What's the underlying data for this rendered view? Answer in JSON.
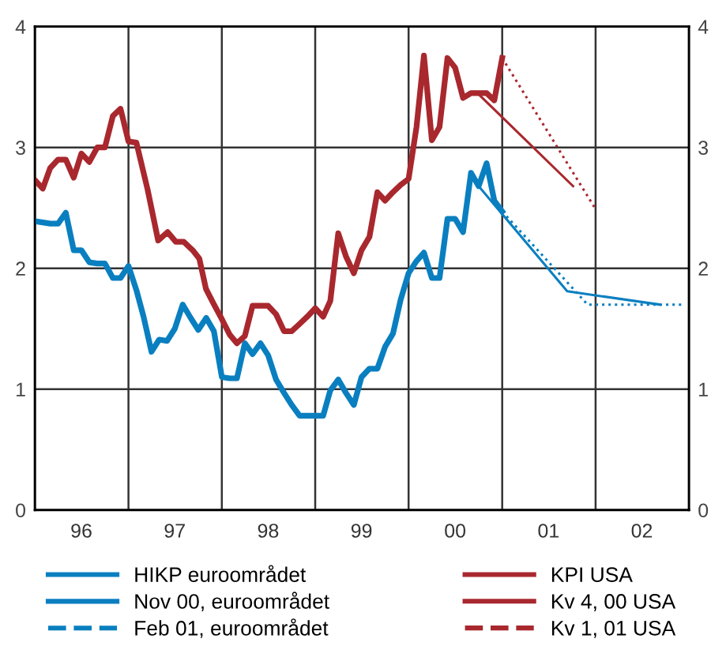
{
  "chart_data": {
    "type": "line",
    "xlim": [
      "1996-01-01",
      "2003-01-01"
    ],
    "xticks": [
      {
        "value": "1996-01-01",
        "label": null
      },
      {
        "value": "1996-07-01",
        "label": "96"
      },
      {
        "value": "1997-01-01",
        "label": null
      },
      {
        "value": "1997-07-01",
        "label": "97"
      },
      {
        "value": "1998-01-01",
        "label": null
      },
      {
        "value": "1998-07-01",
        "label": "98"
      },
      {
        "value": "1999-01-01",
        "label": null
      },
      {
        "value": "1999-07-01",
        "label": "99"
      },
      {
        "value": "2000-01-01",
        "label": null
      },
      {
        "value": "2000-07-01",
        "label": "00"
      },
      {
        "value": "2001-01-01",
        "label": null
      },
      {
        "value": "2001-07-01",
        "label": "01"
      },
      {
        "value": "2002-01-01",
        "label": null
      },
      {
        "value": "2002-07-01",
        "label": "02"
      },
      {
        "value": "2003-01-01",
        "label": null
      }
    ],
    "ylim": [
      0,
      4
    ],
    "yticks": [
      0,
      1,
      2,
      3,
      4
    ],
    "y2lim": [
      0,
      4
    ],
    "y2ticks": [
      0,
      1,
      2,
      3,
      4
    ],
    "grid": true,
    "legend": "bottom",
    "marker": "none",
    "series": [
      {
        "name": "HIKP euroområdet",
        "color": "#0a7fc0",
        "line_style": "solid",
        "x": [
          "1996-01",
          "1996-02",
          "1996-03",
          "1996-04",
          "1996-05",
          "1996-06",
          "1996-07",
          "1996-08",
          "1996-09",
          "1996-10",
          "1996-11",
          "1996-12",
          "1997-01",
          "1997-02",
          "1997-03",
          "1997-04",
          "1997-05",
          "1997-06",
          "1997-07",
          "1997-08",
          "1997-09",
          "1997-10",
          "1997-11",
          "1997-12",
          "1998-01",
          "1998-02",
          "1998-03",
          "1998-04",
          "1998-05",
          "1998-06",
          "1998-07",
          "1998-08",
          "1998-09",
          "1998-10",
          "1998-11",
          "1998-12",
          "1999-01",
          "1999-02",
          "1999-03",
          "1999-04",
          "1999-05",
          "1999-06",
          "1999-07",
          "1999-08",
          "1999-09",
          "1999-10",
          "1999-11",
          "1999-12",
          "2000-01",
          "2000-02",
          "2000-03",
          "2000-04",
          "2000-05",
          "2000-06",
          "2000-07",
          "2000-08",
          "2000-09",
          "2000-10",
          "2000-11",
          "2000-12",
          "2001-01"
        ],
        "values": [
          2.39,
          2.38,
          2.37,
          2.37,
          2.46,
          2.15,
          2.15,
          2.05,
          2.04,
          2.04,
          1.92,
          1.92,
          2.02,
          1.82,
          1.6,
          1.31,
          1.41,
          1.4,
          1.5,
          1.7,
          1.59,
          1.49,
          1.59,
          1.48,
          1.1,
          1.09,
          1.09,
          1.38,
          1.29,
          1.38,
          1.28,
          1.08,
          0.97,
          0.87,
          0.78,
          0.78,
          0.78,
          0.78,
          0.99,
          1.08,
          0.97,
          0.87,
          1.1,
          1.17,
          1.17,
          1.35,
          1.46,
          1.74,
          1.96,
          2.06,
          2.13,
          1.92,
          1.92,
          2.41,
          2.41,
          2.3,
          2.79,
          2.68,
          2.87,
          2.56,
          2.47
        ]
      },
      {
        "name": "Nov 00, euroområdet",
        "color": "#0a7fc0",
        "line_style": "solid",
        "x": [
          "2000-10",
          "2001-09-12",
          "2002-09-09"
        ],
        "values": [
          2.68,
          1.81,
          1.7
        ]
      },
      {
        "name": "Feb 01, euroområdet",
        "color": "#0a7fc0",
        "line_style": "dotted",
        "x": [
          "2001-01",
          "2001-12-01",
          "2002-12-10"
        ],
        "values": [
          2.47,
          1.7,
          1.7
        ]
      },
      {
        "name": "KPI USA",
        "color": "#a8282e",
        "line_style": "solid",
        "x": [
          "1996-01",
          "1996-02",
          "1996-03",
          "1996-04",
          "1996-05",
          "1996-06",
          "1996-07",
          "1996-08",
          "1996-09",
          "1996-10",
          "1996-11",
          "1996-12",
          "1997-01",
          "1997-02",
          "1997-03-17",
          "1997-04-27",
          "1997-06-03",
          "1997-07-05",
          "1997-08-05",
          "1997-09-09",
          "1997-10-05",
          "1997-10-31",
          "1997-11-29",
          "1998-01",
          "1998-02",
          "1998-03",
          "1998-04",
          "1998-05",
          "1998-06",
          "1998-07",
          "1998-08",
          "1998-09",
          "1998-10",
          "1998-11",
          "1998-12",
          "1999-01",
          "1999-02",
          "1999-03",
          "1999-04",
          "1999-05",
          "1999-06",
          "1999-07",
          "1999-08",
          "1999-09",
          "1999-10",
          "1999-11",
          "1999-12",
          "2000-01",
          "2000-02",
          "2000-03",
          "2000-04",
          "2000-05",
          "2000-06",
          "2000-07",
          "2000-08",
          "2000-09",
          "2000-10",
          "2000-11",
          "2000-12",
          "2001-01"
        ],
        "values": [
          2.73,
          2.66,
          2.83,
          2.9,
          2.9,
          2.75,
          2.95,
          2.88,
          3.0,
          3.0,
          3.26,
          3.32,
          3.05,
          3.04,
          2.65,
          2.23,
          2.3,
          2.22,
          2.22,
          2.15,
          2.08,
          1.83,
          1.71,
          1.58,
          1.45,
          1.38,
          1.44,
          1.69,
          1.69,
          1.69,
          1.62,
          1.48,
          1.48,
          1.54,
          1.6,
          1.67,
          1.6,
          1.73,
          2.29,
          2.1,
          1.96,
          2.15,
          2.26,
          2.63,
          2.56,
          2.63,
          2.69,
          2.74,
          3.17,
          3.76,
          3.06,
          3.17,
          3.74,
          3.66,
          3.41,
          3.45,
          3.45,
          3.45,
          3.39,
          3.74
        ]
      },
      {
        "name": "Kv 4, 00 USA",
        "color": "#a8282e",
        "line_style": "solid",
        "x": [
          "2000-10",
          "2001-10-05"
        ],
        "values": [
          3.44,
          2.68
        ]
      },
      {
        "name": "Kv 1, 01 USA",
        "color": "#a8282e",
        "line_style": "dotted",
        "x": [
          "2001-01",
          "2002-01"
        ],
        "values": [
          3.74,
          2.49
        ]
      }
    ]
  }
}
